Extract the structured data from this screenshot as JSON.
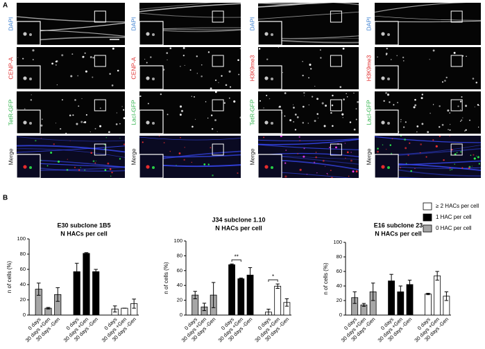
{
  "panel_a": {
    "label": "A",
    "columns": [
      [
        "DAPI",
        "CENP-A",
        "TetR-GFP",
        "Merge"
      ],
      [
        "DAPI",
        "CENP-A",
        "LacI-GFP",
        "Merge"
      ],
      [
        "DAPI",
        "H3K9me3",
        "TetR-GFP",
        "Merge"
      ],
      [
        "DAPI",
        "H3K9me3",
        "LacI-GFP",
        "Merge"
      ]
    ]
  },
  "panel_b": {
    "label": "B"
  },
  "chart_data": [
    {
      "type": "bar",
      "title": "E30 subclone 1B5",
      "subtitle": "N HACs per cell",
      "y_label": "n of cells (%)",
      "categories": [
        "0 days",
        "30 days +Gen",
        "30 days -Gen"
      ],
      "series": [
        {
          "name": "0 HAC per cell",
          "color": "#a6a6a6",
          "values": [
            34,
            9,
            27
          ],
          "errors": [
            8,
            1,
            9
          ]
        },
        {
          "name": "1 HAC per cell",
          "color": "#000000",
          "values": [
            57,
            81,
            57
          ],
          "errors": [
            11,
            1,
            3
          ]
        },
        {
          "name": "≥ 2 HACs per cell",
          "color": "#ffffff",
          "values": [
            8,
            9,
            15
          ],
          "errors": [
            4,
            0,
            6
          ]
        }
      ],
      "ylim": [
        0,
        100
      ],
      "yticks": [
        0,
        20,
        40,
        60,
        80,
        100
      ]
    },
    {
      "type": "bar",
      "title": "J34 subclone 1.10",
      "subtitle": "N HACs per cell",
      "y_label": "n of cells (%)",
      "categories": [
        "0 days",
        "30 days +Gen",
        "30 days -Gen"
      ],
      "series": [
        {
          "name": "0 HAC per cell",
          "color": "#a6a6a6",
          "values": [
            27,
            11,
            27
          ],
          "errors": [
            5,
            5,
            17
          ]
        },
        {
          "name": "1 HAC per cell",
          "color": "#000000",
          "values": [
            68,
            49,
            54
          ],
          "errors": [
            1,
            1,
            10
          ]
        },
        {
          "name": "≥ 2 HACs per cell",
          "color": "#ffffff",
          "values": [
            4,
            39,
            17
          ],
          "errors": [
            4,
            3,
            5
          ]
        }
      ],
      "ylim": [
        0,
        100
      ],
      "yticks": [
        0,
        20,
        40,
        60,
        80,
        100
      ],
      "annotations": [
        {
          "text": "**",
          "series": 1,
          "from": 0,
          "to": 1
        },
        {
          "text": "*",
          "series": 2,
          "from": 0,
          "to": 1
        }
      ]
    },
    {
      "type": "bar",
      "title": "E16 subclone 23",
      "subtitle": "N HACs per cell",
      "y_label": "n of cells (%)",
      "categories": [
        "0 days",
        "30 days +Gen",
        "30 days -Gen"
      ],
      "series": [
        {
          "name": "0 HAC per cell",
          "color": "#a6a6a6",
          "values": [
            24,
            14,
            32
          ],
          "errors": [
            8,
            2,
            12
          ]
        },
        {
          "name": "1 HAC per cell",
          "color": "#000000",
          "values": [
            47,
            32,
            42
          ],
          "errors": [
            9,
            8,
            6
          ]
        },
        {
          "name": "≥ 2 HACs per cell",
          "color": "#ffffff",
          "values": [
            29,
            54,
            26
          ],
          "errors": [
            1,
            6,
            6
          ]
        }
      ],
      "ylim": [
        0,
        100
      ],
      "yticks": [
        0,
        20,
        40,
        60,
        80,
        100
      ]
    }
  ]
}
